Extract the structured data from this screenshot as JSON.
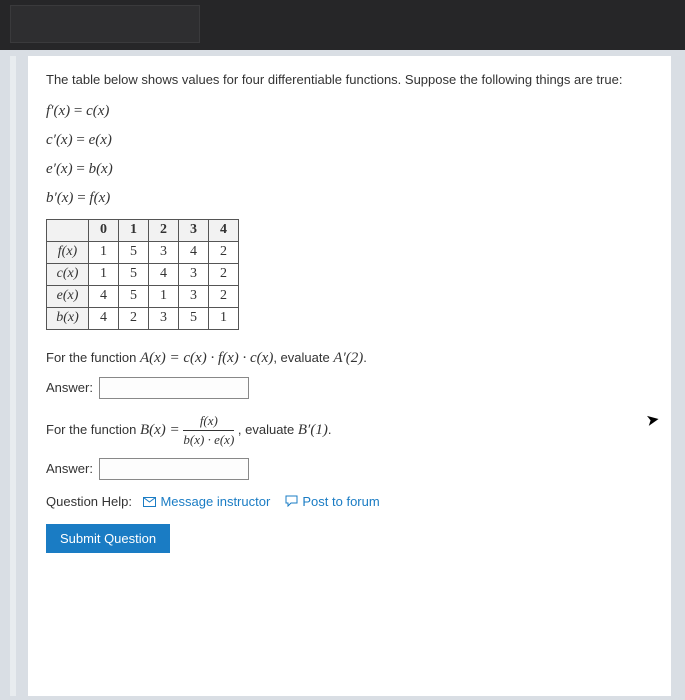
{
  "intro": "The table below shows values for four differentiable functions. Suppose the following things are true:",
  "equations": [
    {
      "lhs": "f′(x)",
      "rhs": "c(x)"
    },
    {
      "lhs": "c′(x)",
      "rhs": "e(x)"
    },
    {
      "lhs": "e′(x)",
      "rhs": "b(x)"
    },
    {
      "lhs": "b′(x)",
      "rhs": "f(x)"
    }
  ],
  "table": {
    "col_headers": [
      "0",
      "1",
      "2",
      "3",
      "4"
    ],
    "rows": [
      {
        "label": "f(x)",
        "values": [
          "1",
          "5",
          "3",
          "4",
          "2"
        ]
      },
      {
        "label": "c(x)",
        "values": [
          "1",
          "5",
          "4",
          "3",
          "2"
        ]
      },
      {
        "label": "e(x)",
        "values": [
          "4",
          "5",
          "1",
          "3",
          "2"
        ]
      },
      {
        "label": "b(x)",
        "values": [
          "4",
          "2",
          "3",
          "5",
          "1"
        ]
      }
    ]
  },
  "promptA_pre": "For the function ",
  "promptA_math": "A(x) = c(x) · f(x) · c(x)",
  "promptA_post": ", evaluate ",
  "promptA_eval": "A′(2)",
  "period": ".",
  "answer_label": "Answer:",
  "promptB_pre": "For the function ",
  "promptB_lhs": "B(x) = ",
  "promptB_num": "f(x)",
  "promptB_den": "b(x) · e(x)",
  "promptB_post": " , evaluate ",
  "promptB_eval": "B′(1)",
  "help": {
    "label": "Question Help:",
    "msg": "Message instructor",
    "forum": "Post to forum"
  },
  "submit": "Submit Question",
  "colors": {
    "link": "#1a7cc4",
    "button_bg": "#1a7cc4",
    "page_bg": "#d9dee4",
    "card_bg": "#ffffff"
  }
}
